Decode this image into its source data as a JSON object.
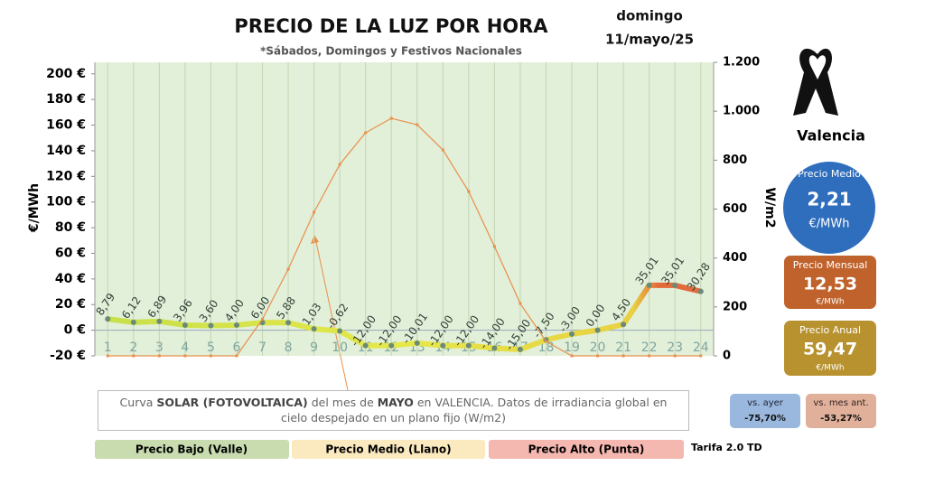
{
  "chart_data": {
    "type": "line",
    "title": "PRECIO DE LA LUZ POR HORA",
    "subtitle": "*Sábados, Domingos y Festivos Nacionales",
    "ylabel": "€/MWh",
    "y2label": "W/m2",
    "categories": [
      "1",
      "2",
      "3",
      "4",
      "5",
      "6",
      "7",
      "8",
      "9",
      "10",
      "11",
      "12",
      "13",
      "14",
      "15",
      "16",
      "17",
      "18",
      "19",
      "20",
      "21",
      "22",
      "23",
      "24"
    ],
    "series": [
      {
        "name": "Precio",
        "color": "#d4e04a",
        "values": [
          8.79,
          6.12,
          6.89,
          3.96,
          3.6,
          4.0,
          6.0,
          5.88,
          1.03,
          -0.62,
          -12.0,
          -12.0,
          -10.01,
          -12.0,
          -12.0,
          -14.0,
          -15.0,
          -7.5,
          -3.0,
          0.0,
          4.5,
          35.01,
          35.01,
          30.28
        ],
        "value_labels": [
          "8,79",
          "6,12",
          "6,89",
          "3,96",
          "3,60",
          "4,00",
          "6,00",
          "5,88",
          "1,03",
          "-0,62",
          "-12,00",
          "-12,00",
          "-10,01",
          "-12,00",
          "-12,00",
          "-14,00",
          "-15,00",
          "-7,50",
          "-3,00",
          "0,00",
          "4,50",
          "35,01",
          "35,01",
          "30,28"
        ]
      },
      {
        "name": "Solar",
        "color": "#e8904a",
        "axis": "y2",
        "values": [
          0,
          0,
          0,
          0,
          0,
          0,
          150,
          354,
          587,
          783,
          912,
          971,
          945,
          842,
          672,
          447,
          214,
          59,
          0,
          0,
          0,
          0,
          0,
          0
        ]
      }
    ],
    "ylim": [
      -20,
      209
    ],
    "yticks": [
      {
        "value": -20,
        "label": "-20 €"
      },
      {
        "value": 0,
        "label": "0 €"
      },
      {
        "value": 20,
        "label": "20 €"
      },
      {
        "value": 40,
        "label": "40 €"
      },
      {
        "value": 60,
        "label": "60 €"
      },
      {
        "value": 80,
        "label": "80 €"
      },
      {
        "value": 100,
        "label": "100 €"
      },
      {
        "value": 120,
        "label": "120 €"
      },
      {
        "value": 140,
        "label": "140 €"
      },
      {
        "value": 160,
        "label": "160 €"
      },
      {
        "value": 180,
        "label": "180 €"
      },
      {
        "value": 200,
        "label": "200 €"
      }
    ],
    "y2lim": [
      0,
      1200
    ],
    "y2ticks": [
      0,
      200,
      400,
      600,
      800,
      {
        "value": 1000,
        "label": "1.000"
      },
      {
        "value": 1200,
        "label": "1.200"
      }
    ],
    "grid": true
  },
  "date": {
    "weekday": "domingo",
    "day": "11/mayo/25"
  },
  "city": "Valencia",
  "medio": {
    "label": "Precio Medio",
    "value": "2,21",
    "unit": "€/MWh"
  },
  "mensual": {
    "label": "Precio Mensual",
    "value": "12,53",
    "unit": "€/MWh"
  },
  "anual": {
    "label": "Precio Anual",
    "value": "59,47",
    "unit": "€/MWh"
  },
  "vs_ayer": {
    "label": "vs. ayer",
    "value": "-75,70%"
  },
  "vs_mes": {
    "label": "vs. mes ant.",
    "value": "-53,27%"
  },
  "note": [
    "Curva ",
    "SOLAR (FOTOVOLTAICA)",
    " del mes de ",
    "MAYO",
    " en VALENCIA. Datos de irradiancia global en cielo despejado en un plano fijo (W/m2)"
  ],
  "legend": [
    "Precio Bajo (Valle)",
    "Precio Medio (Llano)",
    "Precio Alto (Punta)"
  ],
  "tarifa": "Tarifa 2.0 TD"
}
